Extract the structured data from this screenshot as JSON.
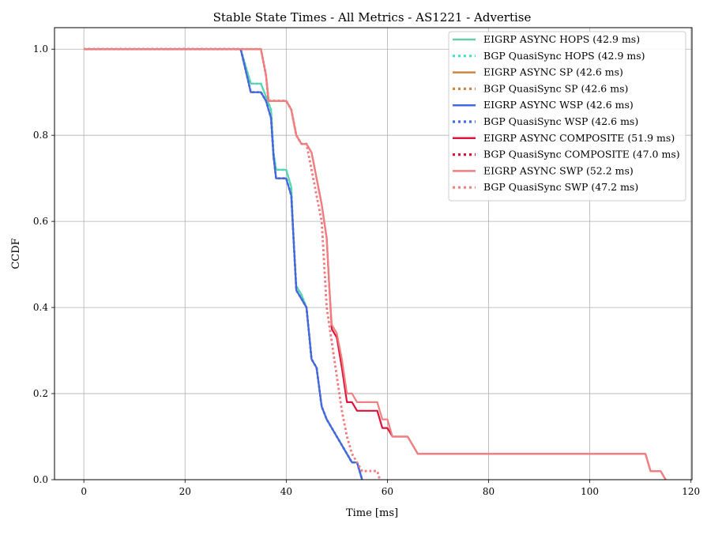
{
  "chart_data": {
    "type": "line",
    "title": "Stable State Times - All Metrics - AS1221 - Advertise",
    "xlabel": "Time [ms]",
    "ylabel": "CCDF",
    "xlim": [
      -5.8,
      120.2
    ],
    "ylim": [
      0.0,
      1.05
    ],
    "x_ticks": [
      0,
      20,
      40,
      60,
      80,
      100,
      120
    ],
    "y_ticks": [
      0.0,
      0.2,
      0.4,
      0.6,
      0.8,
      1.0
    ],
    "x_tick_labels": [
      "0",
      "20",
      "40",
      "60",
      "80",
      "100",
      "120"
    ],
    "y_tick_labels": [
      "0.0",
      "0.2",
      "0.4",
      "0.6",
      "0.8",
      "1.0"
    ],
    "grid": true,
    "legend_position": "top-right",
    "series": [
      {
        "name": "EIGRP ASYNC HOPS (42.9 ms)",
        "color": "#66cdaa",
        "dash": "solid",
        "points": [
          [
            0,
            1.0
          ],
          [
            31,
            1.0
          ],
          [
            32,
            0.96
          ],
          [
            33,
            0.92
          ],
          [
            35,
            0.92
          ],
          [
            36,
            0.89
          ],
          [
            37,
            0.86
          ],
          [
            37.5,
            0.76
          ],
          [
            38,
            0.72
          ],
          [
            40,
            0.72
          ],
          [
            41,
            0.68
          ],
          [
            41.5,
            0.55
          ],
          [
            42,
            0.45
          ],
          [
            43,
            0.43
          ],
          [
            44,
            0.4
          ],
          [
            45,
            0.28
          ],
          [
            46,
            0.26
          ],
          [
            47,
            0.17
          ],
          [
            48,
            0.14
          ],
          [
            50,
            0.1
          ],
          [
            52,
            0.06
          ],
          [
            53,
            0.04
          ],
          [
            54,
            0.04
          ],
          [
            55,
            0.0
          ]
        ]
      },
      {
        "name": "BGP QuasiSync HOPS (42.9 ms)",
        "color": "#40e0c0",
        "dash": "dotted",
        "points": [
          [
            0,
            1.0
          ],
          [
            31,
            1.0
          ],
          [
            32,
            0.96
          ],
          [
            33,
            0.92
          ],
          [
            35,
            0.92
          ],
          [
            36,
            0.89
          ],
          [
            37,
            0.86
          ],
          [
            37.5,
            0.76
          ],
          [
            38,
            0.72
          ],
          [
            40,
            0.72
          ],
          [
            41,
            0.68
          ],
          [
            41.5,
            0.55
          ],
          [
            42,
            0.45
          ],
          [
            43,
            0.43
          ],
          [
            44,
            0.4
          ],
          [
            45,
            0.28
          ],
          [
            46,
            0.26
          ],
          [
            47,
            0.17
          ],
          [
            48,
            0.14
          ],
          [
            50,
            0.1
          ],
          [
            52,
            0.06
          ],
          [
            53,
            0.04
          ],
          [
            54,
            0.04
          ],
          [
            55,
            0.0
          ]
        ]
      },
      {
        "name": "EIGRP ASYNC SP (42.6 ms)",
        "color": "#cd853f",
        "dash": "solid",
        "points": [
          [
            0,
            1.0
          ],
          [
            31,
            1.0
          ],
          [
            32,
            0.95
          ],
          [
            33,
            0.9
          ],
          [
            35,
            0.9
          ],
          [
            36,
            0.88
          ],
          [
            37,
            0.84
          ],
          [
            37.5,
            0.75
          ],
          [
            38,
            0.7
          ],
          [
            40,
            0.7
          ],
          [
            41,
            0.66
          ],
          [
            41.5,
            0.55
          ],
          [
            42,
            0.44
          ],
          [
            43,
            0.42
          ],
          [
            44,
            0.4
          ],
          [
            45,
            0.28
          ],
          [
            46,
            0.26
          ],
          [
            47,
            0.17
          ],
          [
            48,
            0.14
          ],
          [
            50,
            0.1
          ],
          [
            52,
            0.06
          ],
          [
            53,
            0.04
          ],
          [
            54,
            0.04
          ],
          [
            55,
            0.0
          ]
        ]
      },
      {
        "name": "BGP QuasiSync SP (42.6 ms)",
        "color": "#cd853f",
        "dash": "dotted",
        "points": [
          [
            0,
            1.0
          ],
          [
            31,
            1.0
          ],
          [
            32,
            0.95
          ],
          [
            33,
            0.9
          ],
          [
            35,
            0.9
          ],
          [
            36,
            0.88
          ],
          [
            37,
            0.84
          ],
          [
            37.5,
            0.75
          ],
          [
            38,
            0.7
          ],
          [
            40,
            0.7
          ],
          [
            41,
            0.66
          ],
          [
            41.5,
            0.55
          ],
          [
            42,
            0.44
          ],
          [
            43,
            0.42
          ],
          [
            44,
            0.4
          ],
          [
            45,
            0.28
          ],
          [
            46,
            0.26
          ],
          [
            47,
            0.17
          ],
          [
            48,
            0.14
          ],
          [
            50,
            0.1
          ],
          [
            52,
            0.06
          ],
          [
            53,
            0.04
          ],
          [
            54,
            0.04
          ],
          [
            55,
            0.0
          ]
        ]
      },
      {
        "name": "EIGRP ASYNC WSP (42.6 ms)",
        "color": "#4169e1",
        "dash": "solid",
        "points": [
          [
            0,
            1.0
          ],
          [
            31,
            1.0
          ],
          [
            32,
            0.95
          ],
          [
            33,
            0.9
          ],
          [
            35,
            0.9
          ],
          [
            36,
            0.88
          ],
          [
            37,
            0.84
          ],
          [
            37.5,
            0.75
          ],
          [
            38,
            0.7
          ],
          [
            40,
            0.7
          ],
          [
            41,
            0.66
          ],
          [
            41.5,
            0.55
          ],
          [
            42,
            0.44
          ],
          [
            43,
            0.42
          ],
          [
            44,
            0.4
          ],
          [
            45,
            0.28
          ],
          [
            46,
            0.26
          ],
          [
            47,
            0.17
          ],
          [
            48,
            0.14
          ],
          [
            50,
            0.1
          ],
          [
            52,
            0.06
          ],
          [
            53,
            0.04
          ],
          [
            54,
            0.04
          ],
          [
            55,
            0.0
          ]
        ]
      },
      {
        "name": "BGP QuasiSync WSP (42.6 ms)",
        "color": "#4169e1",
        "dash": "dotted",
        "points": [
          [
            0,
            1.0
          ],
          [
            31,
            1.0
          ],
          [
            32,
            0.95
          ],
          [
            33,
            0.9
          ],
          [
            35,
            0.9
          ],
          [
            36,
            0.88
          ],
          [
            37,
            0.84
          ],
          [
            37.5,
            0.75
          ],
          [
            38,
            0.7
          ],
          [
            40,
            0.7
          ],
          [
            41,
            0.66
          ],
          [
            41.5,
            0.55
          ],
          [
            42,
            0.44
          ],
          [
            43,
            0.42
          ],
          [
            44,
            0.4
          ],
          [
            45,
            0.28
          ],
          [
            46,
            0.26
          ],
          [
            47,
            0.17
          ],
          [
            48,
            0.14
          ],
          [
            50,
            0.1
          ],
          [
            52,
            0.06
          ],
          [
            53,
            0.04
          ],
          [
            54,
            0.04
          ],
          [
            55,
            0.0
          ]
        ]
      },
      {
        "name": "EIGRP ASYNC COMPOSITE (51.9 ms)",
        "color": "#dc143c",
        "dash": "solid",
        "points": [
          [
            0,
            1.0
          ],
          [
            35,
            1.0
          ],
          [
            36,
            0.94
          ],
          [
            36.5,
            0.88
          ],
          [
            39,
            0.88
          ],
          [
            40,
            0.88
          ],
          [
            41,
            0.86
          ],
          [
            42,
            0.8
          ],
          [
            43,
            0.78
          ],
          [
            44,
            0.78
          ],
          [
            45,
            0.76
          ],
          [
            46,
            0.7
          ],
          [
            47,
            0.64
          ],
          [
            48,
            0.56
          ],
          [
            48.5,
            0.45
          ],
          [
            49,
            0.35
          ],
          [
            50,
            0.33
          ],
          [
            51,
            0.26
          ],
          [
            52,
            0.18
          ],
          [
            53,
            0.18
          ],
          [
            54,
            0.16
          ],
          [
            58,
            0.16
          ],
          [
            59,
            0.12
          ],
          [
            60,
            0.12
          ],
          [
            61,
            0.1
          ],
          [
            64,
            0.1
          ],
          [
            66,
            0.06
          ],
          [
            111,
            0.06
          ],
          [
            112,
            0.02
          ],
          [
            114,
            0.02
          ],
          [
            115,
            0.0
          ]
        ]
      },
      {
        "name": "BGP QuasiSync COMPOSITE (47.0 ms)",
        "color": "#dc143c",
        "dash": "dotted",
        "points": [
          [
            0,
            1.0
          ],
          [
            35,
            1.0
          ],
          [
            36,
            0.94
          ],
          [
            36.5,
            0.88
          ],
          [
            40,
            0.88
          ],
          [
            41,
            0.86
          ],
          [
            42,
            0.8
          ],
          [
            43,
            0.78
          ],
          [
            44,
            0.78
          ],
          [
            45,
            0.72
          ],
          [
            46,
            0.66
          ],
          [
            47,
            0.6
          ],
          [
            47.5,
            0.5
          ],
          [
            48,
            0.4
          ],
          [
            49,
            0.32
          ],
          [
            50,
            0.24
          ],
          [
            51,
            0.16
          ],
          [
            52,
            0.1
          ],
          [
            53,
            0.06
          ],
          [
            54,
            0.04
          ],
          [
            55,
            0.02
          ],
          [
            58,
            0.02
          ],
          [
            58.5,
            0.0
          ]
        ]
      },
      {
        "name": "EIGRP ASYNC SWP (52.2 ms)",
        "color": "#f08080",
        "dash": "solid",
        "points": [
          [
            0,
            1.0
          ],
          [
            35,
            1.0
          ],
          [
            36,
            0.94
          ],
          [
            36.5,
            0.88
          ],
          [
            39,
            0.88
          ],
          [
            40,
            0.88
          ],
          [
            41,
            0.86
          ],
          [
            42,
            0.8
          ],
          [
            43,
            0.78
          ],
          [
            44,
            0.78
          ],
          [
            45,
            0.76
          ],
          [
            46,
            0.7
          ],
          [
            47,
            0.64
          ],
          [
            48,
            0.56
          ],
          [
            48.5,
            0.45
          ],
          [
            49,
            0.36
          ],
          [
            50,
            0.34
          ],
          [
            51,
            0.28
          ],
          [
            52,
            0.2
          ],
          [
            53,
            0.2
          ],
          [
            54,
            0.18
          ],
          [
            58,
            0.18
          ],
          [
            59,
            0.14
          ],
          [
            60,
            0.14
          ],
          [
            61,
            0.1
          ],
          [
            64,
            0.1
          ],
          [
            66,
            0.06
          ],
          [
            111,
            0.06
          ],
          [
            112,
            0.02
          ],
          [
            114,
            0.02
          ],
          [
            115,
            0.0
          ]
        ]
      },
      {
        "name": "BGP QuasiSync SWP (47.2 ms)",
        "color": "#f08080",
        "dash": "dotted",
        "points": [
          [
            0,
            1.0
          ],
          [
            35,
            1.0
          ],
          [
            36,
            0.94
          ],
          [
            36.5,
            0.88
          ],
          [
            40,
            0.88
          ],
          [
            41,
            0.86
          ],
          [
            42,
            0.8
          ],
          [
            43,
            0.78
          ],
          [
            44,
            0.78
          ],
          [
            45,
            0.72
          ],
          [
            46,
            0.66
          ],
          [
            47,
            0.6
          ],
          [
            47.5,
            0.5
          ],
          [
            48,
            0.4
          ],
          [
            49,
            0.32
          ],
          [
            50,
            0.24
          ],
          [
            51,
            0.16
          ],
          [
            52,
            0.1
          ],
          [
            53,
            0.06
          ],
          [
            54,
            0.04
          ],
          [
            55,
            0.02
          ],
          [
            58,
            0.02
          ],
          [
            58.5,
            0.0
          ]
        ]
      }
    ]
  }
}
